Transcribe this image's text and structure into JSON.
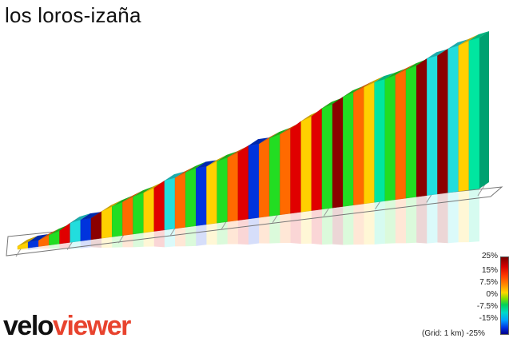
{
  "title": "los loros-izaña",
  "legend": {
    "labels": [
      "25%",
      "15%",
      "7.5%",
      "0%",
      "-7.5%",
      "-15%",
      "-25%"
    ],
    "grid_note": "(Grid: 1 km) -25%"
  },
  "brand": {
    "part1": "velo",
    "part2": "viewer"
  },
  "colors": {
    "steep_dark": "#8b0000",
    "steep": "#e00000",
    "hard": "#ff6a00",
    "medium": "#ffd000",
    "gentle": "#22dd22",
    "flat": "#00e6a0",
    "slight_down": "#22dddd",
    "down": "#0033dd"
  },
  "profile_segments": [
    {
      "grade": 4,
      "color": "#ffd000"
    },
    {
      "grade": -3,
      "color": "#0033dd"
    },
    {
      "grade": 7,
      "color": "#ff6a00"
    },
    {
      "grade": 5,
      "color": "#22dd22"
    },
    {
      "grade": 13,
      "color": "#e00000"
    },
    {
      "grade": 2,
      "color": "#22dddd"
    },
    {
      "grade": -4,
      "color": "#0033dd"
    },
    {
      "grade": 11,
      "color": "#8b0000"
    },
    {
      "grade": 6,
      "color": "#ffd000"
    },
    {
      "grade": 5,
      "color": "#22dd22"
    },
    {
      "grade": 7,
      "color": "#ff6a00"
    },
    {
      "grade": 4,
      "color": "#22dd22"
    },
    {
      "grade": 6,
      "color": "#ffd000"
    },
    {
      "grade": 12,
      "color": "#e00000"
    },
    {
      "grade": 1,
      "color": "#22dddd"
    },
    {
      "grade": 7,
      "color": "#ff6a00"
    },
    {
      "grade": 5,
      "color": "#22dd22"
    },
    {
      "grade": -4,
      "color": "#0033dd"
    },
    {
      "grade": 7,
      "color": "#ffd000"
    },
    {
      "grade": 3,
      "color": "#22dd22"
    },
    {
      "grade": 7,
      "color": "#ff6a00"
    },
    {
      "grade": 11,
      "color": "#e00000"
    },
    {
      "grade": -4,
      "color": "#0033dd"
    },
    {
      "grade": 8,
      "color": "#ff6a00"
    },
    {
      "grade": 4,
      "color": "#22dd22"
    },
    {
      "grade": 7,
      "color": "#ff6a00"
    },
    {
      "grade": 13,
      "color": "#e00000"
    },
    {
      "grade": 6,
      "color": "#ffd000"
    },
    {
      "grade": 14,
      "color": "#e00000"
    },
    {
      "grade": 4,
      "color": "#22dd22"
    },
    {
      "grade": 12,
      "color": "#8b0000"
    },
    {
      "grade": 5,
      "color": "#22dd22"
    },
    {
      "grade": 7,
      "color": "#ff6a00"
    },
    {
      "grade": 6,
      "color": "#ffd000"
    },
    {
      "grade": 2,
      "color": "#00e6a0"
    },
    {
      "grade": 4,
      "color": "#22dd22"
    },
    {
      "grade": 7,
      "color": "#ff6a00"
    },
    {
      "grade": 4,
      "color": "#22dd22"
    },
    {
      "grade": 12,
      "color": "#8b0000"
    },
    {
      "grade": 1,
      "color": "#22dddd"
    },
    {
      "grade": 11,
      "color": "#8b0000"
    },
    {
      "grade": 2,
      "color": "#22dddd"
    },
    {
      "grade": 6,
      "color": "#ffd000"
    },
    {
      "grade": 2,
      "color": "#00e6a0"
    }
  ]
}
